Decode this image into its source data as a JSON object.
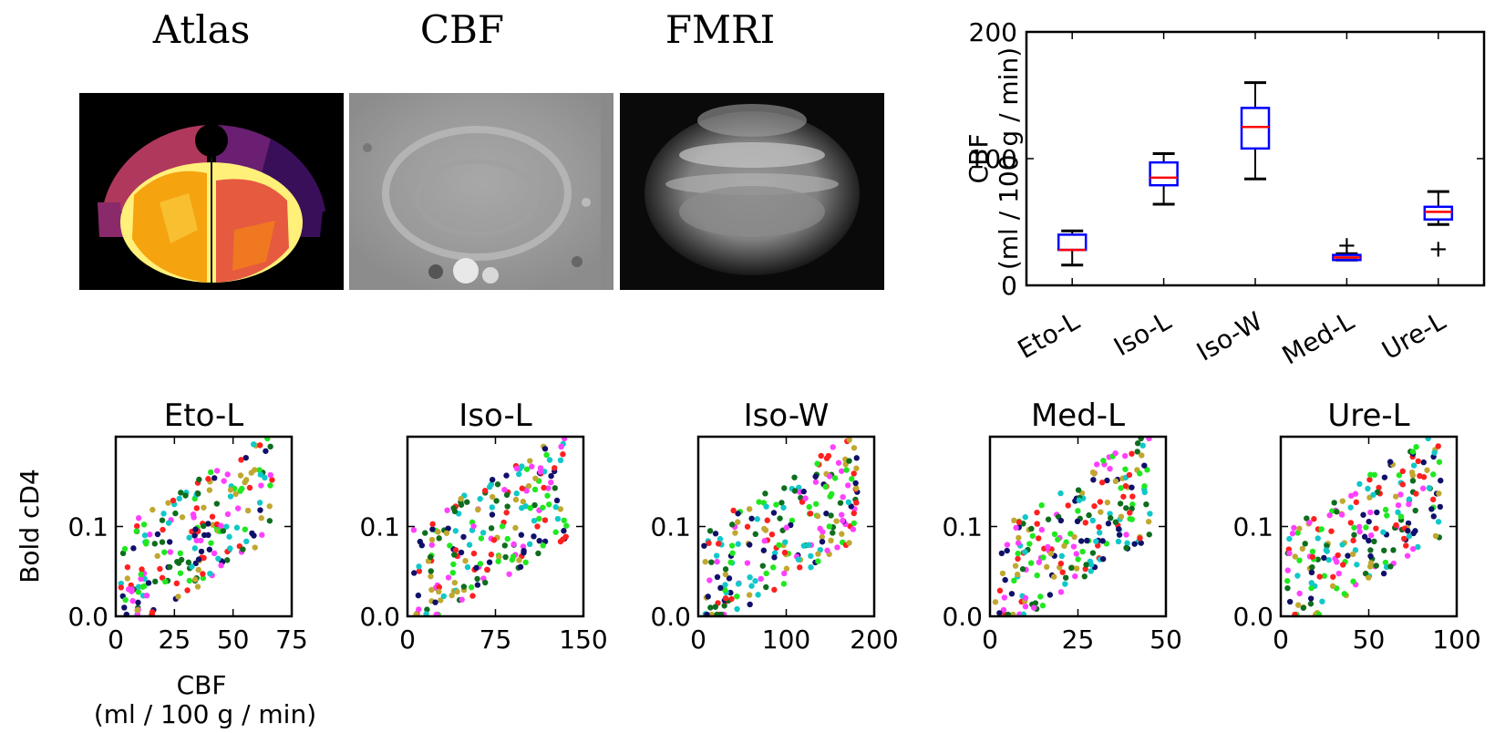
{
  "images": [
    {
      "title": "Atlas"
    },
    {
      "title": "CBF"
    },
    {
      "title": "FMRI"
    }
  ],
  "chart_data": [
    {
      "type": "box",
      "title": "",
      "xlabel": "",
      "ylabel_line1": "CBF",
      "ylabel_line2": "(ml / 100 g / min)",
      "ylim": [
        0,
        200
      ],
      "yticks": [
        "0",
        "100",
        "200"
      ],
      "categories": [
        "Eto-L",
        "Iso-L",
        "Iso-W",
        "Med-L",
        "Ure-L"
      ],
      "boxes": [
        {
          "min": 16,
          "q1": 28,
          "median": 28,
          "q3": 40,
          "max": 43,
          "outliers": []
        },
        {
          "min": 64,
          "q1": 79,
          "median": 85,
          "q3": 97,
          "max": 104,
          "outliers": []
        },
        {
          "min": 84,
          "q1": 108,
          "median": 125,
          "q3": 140,
          "max": 160,
          "outliers": []
        },
        {
          "min": 20,
          "q1": 20,
          "median": 22,
          "q3": 24,
          "max": 25,
          "outliers": [
            32
          ]
        },
        {
          "min": 48,
          "q1": 52,
          "median": 58,
          "q3": 62,
          "max": 74,
          "outliers": [
            29
          ]
        }
      ],
      "colors": {
        "box": "#0000ff",
        "median": "#ff0000",
        "whisker": "#000000"
      }
    },
    {
      "type": "scatter",
      "panels": [
        {
          "title": "Eto-L",
          "xlim": [
            0,
            75
          ],
          "xticks": [
            "0",
            "25",
            "50",
            "75"
          ]
        },
        {
          "title": "Iso-L",
          "xlim": [
            0,
            150
          ],
          "xticks": [
            "0",
            "75",
            "150"
          ]
        },
        {
          "title": "Iso-W",
          "xlim": [
            0,
            200
          ],
          "xticks": [
            "0",
            "100",
            "200"
          ]
        },
        {
          "title": "Med-L",
          "xlim": [
            0,
            50
          ],
          "xticks": [
            "0",
            "25",
            "50"
          ]
        },
        {
          "title": "Ure-L",
          "xlim": [
            0,
            100
          ],
          "xticks": [
            "0",
            "50",
            "100"
          ]
        }
      ],
      "ylim": [
        0,
        0.2
      ],
      "yticks": [
        "0.0",
        "0.1"
      ],
      "ylabel": "Bold cD4",
      "xlabel_line1": "CBF",
      "xlabel_line2": "(ml / 100 g / min)",
      "series_colors": [
        "#ff2020",
        "#10c8c8",
        "#c0a830",
        "#10106a",
        "#20e820",
        "#ff40ff",
        "#0e6e1e"
      ],
      "points_per_panel": 210
    }
  ]
}
